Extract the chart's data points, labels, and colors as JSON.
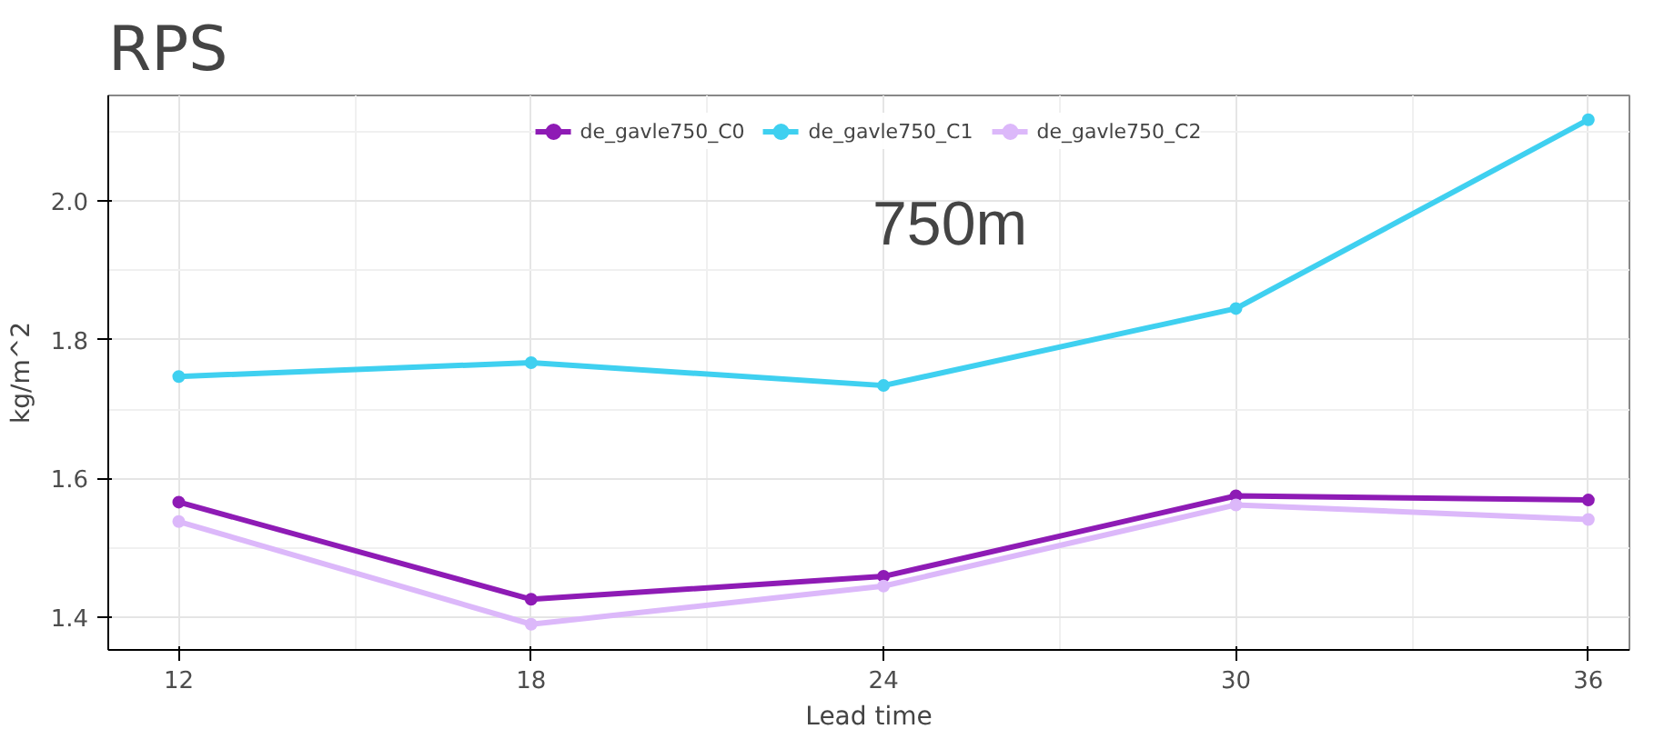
{
  "chart_data": {
    "type": "line",
    "title": "RPS",
    "xlabel": "Lead time",
    "ylabel": "kg/m^2",
    "annotations": [
      "750m"
    ],
    "x": [
      12,
      18,
      24,
      30,
      36
    ],
    "series": [
      {
        "name": "de_gavle750_C0",
        "color": "#8e1bb5",
        "values": [
          1.566,
          1.426,
          1.459,
          1.575,
          1.569
        ]
      },
      {
        "name": "de_gavle750_C1",
        "color": "#3fd0f0",
        "values": [
          1.747,
          1.767,
          1.734,
          1.845,
          2.117
        ]
      },
      {
        "name": "de_gavle750_C2",
        "color": "#dcb8fa",
        "values": [
          1.538,
          1.39,
          1.445,
          1.562,
          1.541
        ]
      }
    ],
    "xlim": [
      10.8,
      36.7
    ],
    "ylim": [
      1.353,
      2.152
    ],
    "xticks": [
      12,
      18,
      24,
      30,
      36
    ],
    "yticks": [
      1.4,
      1.6,
      1.8,
      {
        "value": 2.0,
        "label": "2.0"
      }
    ],
    "grid": true,
    "legend": "top",
    "marker": "circle",
    "line_style": "solid"
  }
}
